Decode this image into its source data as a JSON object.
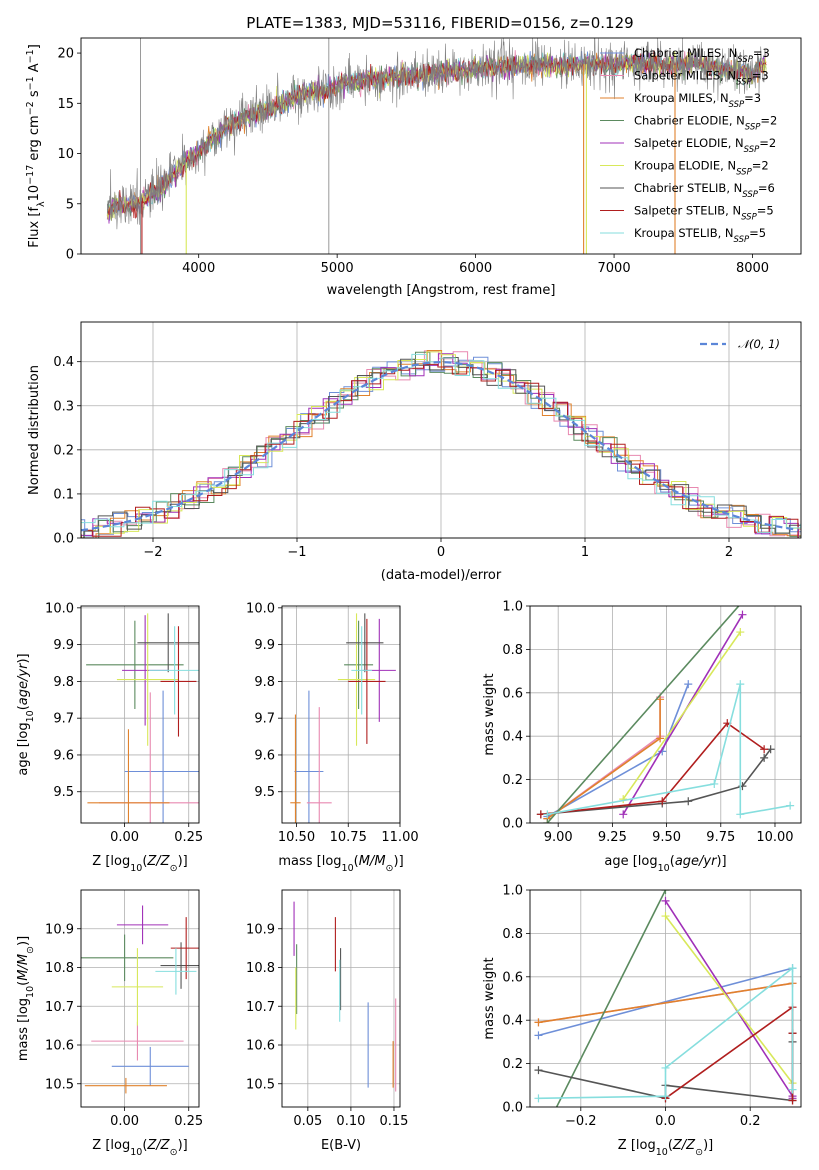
{
  "figure": {
    "title": "PLATE=1383, MJD=53116, FIBERID=0156, z=0.129"
  },
  "models": [
    {
      "name": "Chabrier MILES, N$_{SSP}$=3",
      "label": "Chabrier MILES, N",
      "sub": "SSP",
      "suffix": "=3",
      "color": "#6e8fd8"
    },
    {
      "name": "Salpeter MILES, N$_{SSP}$=3",
      "label": "Salpeter MILES, N",
      "sub": "SSP",
      "suffix": "=3",
      "color": "#e889b0"
    },
    {
      "name": "Kroupa MILES, N$_{SSP}$=3",
      "label": "Kroupa MILES, N",
      "sub": "SSP",
      "suffix": "=3",
      "color": "#e0822d"
    },
    {
      "name": "Chabrier ELODIE, N$_{SSP}$=2",
      "label": "Chabrier ELODIE, N",
      "sub": "SSP",
      "suffix": "=2",
      "color": "#5b8a5f"
    },
    {
      "name": "Salpeter ELODIE, N$_{SSP}$=2",
      "label": "Salpeter ELODIE, N",
      "sub": "SSP",
      "suffix": "=2",
      "color": "#a030b8"
    },
    {
      "name": "Kroupa ELODIE, N$_{SSP}$=2",
      "label": "Kroupa ELODIE, N",
      "sub": "SSP",
      "suffix": "=2",
      "color": "#d8e85a"
    },
    {
      "name": "Chabrier STELIB, N$_{SSP}$=6",
      "label": "Chabrier STELIB, N",
      "sub": "SSP",
      "suffix": "=6",
      "color": "#555555"
    },
    {
      "name": "Salpeter STELIB, N$_{SSP}$=5",
      "label": "Salpeter STELIB, N",
      "sub": "SSP",
      "suffix": "=5",
      "color": "#b01e1e"
    },
    {
      "name": "Kroupa STELIB, N$_{SSP}$=5",
      "label": "Kroupa STELIB, N",
      "sub": "SSP",
      "suffix": "=5",
      "color": "#86dede"
    }
  ],
  "chart_data": [
    {
      "id": "spectrum",
      "type": "line",
      "xlabel": "wavelength [Angstrom, rest frame]",
      "ylabel": "Flux [f$_\\lambda$10$^{-17}$ erg cm$^{-2}$ s$^{-1}$ A$^{-1}$]",
      "ylabel_parts": [
        "Flux [f",
        "λ",
        "10",
        "−17",
        " erg cm",
        "−2",
        " s",
        "−1",
        " A",
        "−1",
        "]"
      ],
      "xlim": [
        3150,
        8350
      ],
      "ylim": [
        0,
        21.5
      ],
      "xticks": [
        4000,
        5000,
        6000,
        7000,
        8000
      ],
      "yticks": [
        0,
        5,
        10,
        15,
        20
      ],
      "grid": false,
      "legend": "upper right",
      "data_color": "#808080",
      "data_envelope": {
        "x": [
          3340,
          3400,
          3500,
          3600,
          3700,
          3800,
          3900,
          4000,
          4100,
          4200,
          4300,
          4400,
          4500,
          4600,
          4700,
          4800,
          4900,
          5000,
          5200,
          5400,
          5600,
          5800,
          6000,
          6200,
          6400,
          6600,
          6800,
          7000,
          7200,
          7400,
          7600,
          7800,
          8000,
          8100
        ],
        "y": [
          4.3,
          5.0,
          4.8,
          5.3,
          6.3,
          7.6,
          9.0,
          10.2,
          11.5,
          12.7,
          13.4,
          14.0,
          14.4,
          14.9,
          15.6,
          16.2,
          16.0,
          16.8,
          17.4,
          17.6,
          17.8,
          18.2,
          18.4,
          18.6,
          18.8,
          18.7,
          18.9,
          18.9,
          19.0,
          18.8,
          19.0,
          18.4,
          18.0,
          19.0
        ]
      },
      "vertical_lines": [
        3580,
        4940
      ],
      "dropouts": [
        {
          "x": 3590,
          "color": "#b01e1e"
        },
        {
          "x": 3910,
          "color": "#d8e85a"
        },
        {
          "x": 6780,
          "color": "#e0822d"
        },
        {
          "x": 6800,
          "color": "#d8e85a"
        },
        {
          "x": 7440,
          "color": "#e0822d"
        }
      ]
    },
    {
      "id": "residuals",
      "type": "histogram",
      "xlabel": "(data-model)/error",
      "ylabel": "Normed distribution",
      "xlim": [
        -2.5,
        2.5
      ],
      "ylim": [
        0,
        0.49
      ],
      "xticks": [
        -2,
        -1,
        0,
        1,
        2
      ],
      "yticks": [
        0.0,
        0.1,
        0.2,
        0.3,
        0.4
      ],
      "grid": true,
      "legend": "upper right",
      "reference_curve": {
        "label": "$\\mathcal{N}(0,1)$",
        "label_text": "𝒩(0, 1)",
        "color": "#5b86d8",
        "style": "dashed",
        "mu": 0,
        "sigma": 1
      },
      "bin_width": 0.1
    },
    {
      "id": "age-vs-Z",
      "type": "errorbar",
      "xlabel": "Z [log$_{10}$(Z/Z$_\\odot$)]",
      "xlabel_parts": [
        "Z [log",
        "10",
        "(",
        "Z/Z",
        "⊙",
        ")]"
      ],
      "ylabel": "age  [log$_{10}$(age/yr)]",
      "ylabel_parts": [
        "age  [log",
        "10",
        "(",
        "age/yr",
        ")]"
      ],
      "xlim": [
        -0.17,
        0.29
      ],
      "ylim": [
        9.415,
        10.005
      ],
      "xticks": [
        0.0,
        0.25
      ],
      "yticks": [
        9.5,
        9.6,
        9.7,
        9.8,
        9.9,
        10.0
      ],
      "grid": true,
      "points": [
        {
          "model": 0,
          "x": 0.15,
          "xerr": 0.15,
          "y": 9.555,
          "yerr": 0.22
        },
        {
          "model": 1,
          "x": 0.1,
          "xerr": 0.2,
          "y": 9.47,
          "yerr": 0.3
        },
        {
          "model": 2,
          "x": 0.015,
          "xerr": 0.16,
          "y": 9.47,
          "yerr": 0.2
        },
        {
          "model": 3,
          "x": 0.04,
          "xerr": 0.19,
          "y": 9.845,
          "yerr": 0.12
        },
        {
          "model": 4,
          "x": 0.08,
          "xerr": 0.09,
          "y": 9.83,
          "yerr": 0.15
        },
        {
          "model": 5,
          "x": 0.09,
          "xerr": 0.12,
          "y": 9.805,
          "yerr": 0.18
        },
        {
          "model": 6,
          "x": 0.17,
          "xerr": 0.12,
          "y": 9.905,
          "yerr": 0.08
        },
        {
          "model": 7,
          "x": 0.21,
          "xerr": 0.07,
          "y": 9.8,
          "yerr": 0.15
        },
        {
          "model": 8,
          "x": 0.195,
          "xerr": 0.1,
          "y": 9.83,
          "yerr": 0.12
        }
      ]
    },
    {
      "id": "age-vs-mass",
      "type": "errorbar",
      "xlabel": "mass [log$_{10}$(M/M$_\\odot$)]",
      "xlabel_parts": [
        "mass [log",
        "10",
        "(",
        "M/M",
        "⊙",
        ")]"
      ],
      "ylabel": "",
      "xlim": [
        10.43,
        11.0
      ],
      "ylim": [
        9.415,
        10.005
      ],
      "xticks": [
        10.5,
        10.75,
        11.0
      ],
      "yticks": [
        9.5,
        9.6,
        9.7,
        9.8,
        9.9,
        10.0
      ],
      "grid": true,
      "points": [
        {
          "model": 0,
          "x": 10.56,
          "xerr": 0.07,
          "y": 9.555,
          "yerr": 0.22
        },
        {
          "model": 1,
          "x": 10.61,
          "xerr": 0.06,
          "y": 9.47,
          "yerr": 0.26
        },
        {
          "model": 2,
          "x": 10.495,
          "xerr": 0.025,
          "y": 9.47,
          "yerr": 0.24
        },
        {
          "model": 3,
          "x": 10.8,
          "xerr": 0.07,
          "y": 9.845,
          "yerr": 0.12
        },
        {
          "model": 4,
          "x": 10.9,
          "xerr": 0.08,
          "y": 9.83,
          "yerr": 0.14
        },
        {
          "model": 5,
          "x": 10.79,
          "xerr": 0.09,
          "y": 9.805,
          "yerr": 0.18
        },
        {
          "model": 6,
          "x": 10.83,
          "xerr": 0.09,
          "y": 9.905,
          "yerr": 0.08
        },
        {
          "model": 7,
          "x": 10.84,
          "xerr": 0.09,
          "y": 9.8,
          "yerr": 0.17
        },
        {
          "model": 8,
          "x": 10.815,
          "xerr": 0.05,
          "y": 9.83,
          "yerr": 0.12
        }
      ]
    },
    {
      "id": "weight-vs-age",
      "type": "line",
      "xlabel": "age  [log$_{10}$(age/yr)]",
      "xlabel_parts": [
        "age  [log",
        "10",
        "(",
        "age/yr",
        ")]"
      ],
      "ylabel": "mass weight",
      "xlim": [
        8.87,
        10.12
      ],
      "ylim": [
        0,
        1
      ],
      "xticks": [
        9.0,
        9.25,
        9.5,
        9.75,
        10.0
      ],
      "yticks": [
        0.0,
        0.2,
        0.4,
        0.6,
        0.8,
        1.0
      ],
      "grid": true,
      "series": [
        {
          "model": 0,
          "x": [
            8.95,
            9.48,
            9.6
          ],
          "y": [
            0.03,
            0.33,
            0.64
          ]
        },
        {
          "model": 1,
          "x": [
            8.95,
            9.47,
            9.47
          ],
          "y": [
            0.02,
            0.4,
            0.58
          ]
        },
        {
          "model": 2,
          "x": [
            8.95,
            9.47,
            9.47
          ],
          "y": [
            0.02,
            0.39,
            0.57
          ]
        },
        {
          "model": 3,
          "x": [
            8.95,
            9.85
          ],
          "y": [
            0.0,
            1.02
          ]
        },
        {
          "model": 4,
          "x": [
            9.3,
            9.85
          ],
          "y": [
            0.04,
            0.96
          ]
        },
        {
          "model": 5,
          "x": [
            9.3,
            9.84
          ],
          "y": [
            0.11,
            0.88
          ]
        },
        {
          "model": 6,
          "x": [
            8.92,
            9.48,
            9.6,
            9.85,
            9.95,
            9.98
          ],
          "y": [
            0.04,
            0.09,
            0.1,
            0.17,
            0.3,
            0.34
          ]
        },
        {
          "model": 7,
          "x": [
            8.92,
            9.48,
            9.78,
            9.95
          ],
          "y": [
            0.04,
            0.1,
            0.46,
            0.34
          ]
        },
        {
          "model": 8,
          "x": [
            8.95,
            9.72,
            9.84,
            9.84,
            10.07
          ],
          "y": [
            0.04,
            0.18,
            0.64,
            0.04,
            0.08
          ]
        }
      ]
    },
    {
      "id": "mass-vs-Z",
      "type": "errorbar",
      "xlabel": "Z [log$_{10}$(Z/Z$_\\odot$)]",
      "xlabel_parts": [
        "Z [log",
        "10",
        "(",
        "Z/Z",
        "⊙",
        ")]"
      ],
      "ylabel": "mass [log$_{10}$(M/M$_\\odot$)]",
      "ylabel_parts": [
        "mass [log",
        "10",
        "(",
        "M/M",
        "⊙",
        ")]"
      ],
      "xlim": [
        -0.17,
        0.29
      ],
      "ylim": [
        10.44,
        11.0
      ],
      "xticks": [
        0.0,
        0.25
      ],
      "yticks": [
        10.5,
        10.6,
        10.7,
        10.8,
        10.9
      ],
      "grid": true,
      "points": [
        {
          "model": 0,
          "x": 0.1,
          "xerr": 0.15,
          "y": 10.545,
          "yerr": 0.05
        },
        {
          "model": 1,
          "x": 0.05,
          "xerr": 0.18,
          "y": 10.61,
          "yerr": 0.05
        },
        {
          "model": 2,
          "x": 0.005,
          "xerr": 0.16,
          "y": 10.495,
          "yerr": 0.02
        },
        {
          "model": 3,
          "x": 0.0,
          "xerr": 0.19,
          "y": 10.825,
          "yerr": 0.06
        },
        {
          "model": 4,
          "x": 0.07,
          "xerr": 0.1,
          "y": 10.91,
          "yerr": 0.05
        },
        {
          "model": 5,
          "x": 0.05,
          "xerr": 0.1,
          "y": 10.75,
          "yerr": 0.1
        },
        {
          "model": 6,
          "x": 0.22,
          "xerr": 0.08,
          "y": 10.805,
          "yerr": 0.06
        },
        {
          "model": 7,
          "x": 0.24,
          "xerr": 0.06,
          "y": 10.85,
          "yerr": 0.08
        },
        {
          "model": 8,
          "x": 0.2,
          "xerr": 0.08,
          "y": 10.79,
          "yerr": 0.06
        }
      ]
    },
    {
      "id": "mass-vs-ebv",
      "type": "errorbar",
      "xlabel": "E(B-V)",
      "ylabel": "",
      "xlim": [
        0.02,
        0.157
      ],
      "ylim": [
        10.44,
        11.0
      ],
      "xticks": [
        0.05,
        0.1,
        0.15
      ],
      "yticks": [
        10.5,
        10.6,
        10.7,
        10.8,
        10.9
      ],
      "grid": true,
      "points": [
        {
          "model": 0,
          "x": 0.12,
          "y": 10.6,
          "yerr": 0.11
        },
        {
          "model": 1,
          "x": 0.152,
          "y": 10.6,
          "yerr": 0.12
        },
        {
          "model": 2,
          "x": 0.149,
          "y": 10.55,
          "yerr": 0.06
        },
        {
          "model": 3,
          "x": 0.037,
          "y": 10.77,
          "yerr": 0.09
        },
        {
          "model": 4,
          "x": 0.034,
          "y": 10.9,
          "yerr": 0.07
        },
        {
          "model": 5,
          "x": 0.036,
          "y": 10.72,
          "yerr": 0.08
        },
        {
          "model": 6,
          "x": 0.088,
          "y": 10.77,
          "yerr": 0.08
        },
        {
          "model": 7,
          "x": 0.082,
          "y": 10.86,
          "yerr": 0.07
        },
        {
          "model": 8,
          "x": 0.087,
          "y": 10.74,
          "yerr": 0.08
        }
      ]
    },
    {
      "id": "weight-vs-Z",
      "type": "line",
      "xlabel": "Z [log$_{10}$(Z/Z$_\\odot$)]",
      "xlabel_parts": [
        "Z [log",
        "10",
        "(",
        "Z/Z",
        "⊙",
        ")]"
      ],
      "ylabel": "mass weight",
      "xlim": [
        -0.32,
        0.32
      ],
      "ylim": [
        0,
        1
      ],
      "xticks": [
        -0.2,
        0.0,
        0.2
      ],
      "yticks": [
        0.0,
        0.2,
        0.4,
        0.6,
        0.8,
        1.0
      ],
      "grid": true,
      "series": [
        {
          "model": 0,
          "x": [
            -0.3,
            0.3
          ],
          "y": [
            0.33,
            0.64
          ]
        },
        {
          "model": 1,
          "x": [
            -0.3,
            0.3
          ],
          "y": [
            0.39,
            0.57
          ]
        },
        {
          "model": 2,
          "x": [
            -0.3,
            0.3
          ],
          "y": [
            0.39,
            0.57
          ]
        },
        {
          "model": 3,
          "x": [
            -0.27,
            0.0
          ],
          "y": [
            -0.05,
            1.0
          ]
        },
        {
          "model": 4,
          "x": [
            0.0,
            0.3,
            0.3
          ],
          "y": [
            0.95,
            0.05,
            0.04
          ]
        },
        {
          "model": 5,
          "x": [
            0.0,
            0.3
          ],
          "y": [
            0.88,
            0.11
          ]
        },
        {
          "model": 6,
          "x": [
            -0.3,
            0.0,
            0.0,
            0.3,
            0.3,
            0.3
          ],
          "y": [
            0.17,
            0.04,
            0.1,
            0.03,
            0.3,
            0.34
          ]
        },
        {
          "model": 7,
          "x": [
            0.0,
            0.3,
            0.3,
            0.3
          ],
          "y": [
            0.04,
            0.46,
            0.34,
            0.03
          ]
        },
        {
          "model": 8,
          "x": [
            -0.3,
            0.0,
            0.0,
            0.3,
            0.3
          ],
          "y": [
            0.04,
            0.05,
            0.18,
            0.64,
            0.08
          ]
        }
      ]
    }
  ]
}
